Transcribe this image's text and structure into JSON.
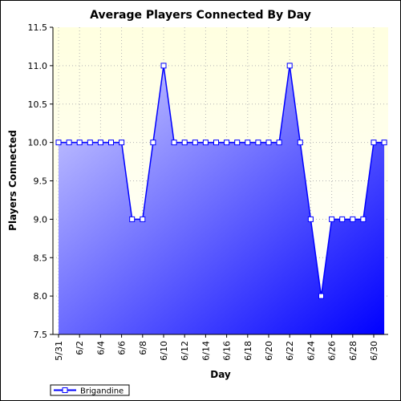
{
  "colors": {
    "plot_background_top": "#ffffe0",
    "fill_light": "#d4d4ff",
    "fill_dark": "#0000ff",
    "series_line": "#0000ff",
    "grid": "#b4b4b4"
  },
  "chart_data": {
    "type": "area",
    "title": "Average Players Connected By Day",
    "xlabel": "Day",
    "ylabel": "Players Connected",
    "ylim": [
      7.5,
      11.5
    ],
    "y_ticks": [
      "7.5",
      "8.0",
      "8.5",
      "9.0",
      "9.5",
      "10.0",
      "10.5",
      "11.0",
      "11.5"
    ],
    "x_ticks": [
      "5/31",
      "6/2",
      "6/4",
      "6/6",
      "6/8",
      "6/10",
      "6/12",
      "6/14",
      "6/16",
      "6/18",
      "6/20",
      "6/22",
      "6/24",
      "6/26",
      "6/28",
      "6/30"
    ],
    "grid": true,
    "legend_position": "bottom-left",
    "x": [
      "5/31",
      "6/1",
      "6/2",
      "6/3",
      "6/4",
      "6/5",
      "6/6",
      "6/7",
      "6/8",
      "6/9",
      "6/10",
      "6/11",
      "6/12",
      "6/13",
      "6/14",
      "6/15",
      "6/16",
      "6/17",
      "6/18",
      "6/19",
      "6/20",
      "6/21",
      "6/22",
      "6/23",
      "6/24",
      "6/25",
      "6/26",
      "6/27",
      "6/28",
      "6/29",
      "6/30",
      "7/1"
    ],
    "series": [
      {
        "name": "Brigandine",
        "values": [
          10,
          10,
          10,
          10,
          10,
          10,
          10,
          9,
          9,
          10,
          11,
          10,
          10,
          10,
          10,
          10,
          10,
          10,
          10,
          10,
          10,
          10,
          11,
          10,
          9,
          8,
          9,
          9,
          9,
          9,
          10,
          10
        ]
      }
    ]
  }
}
